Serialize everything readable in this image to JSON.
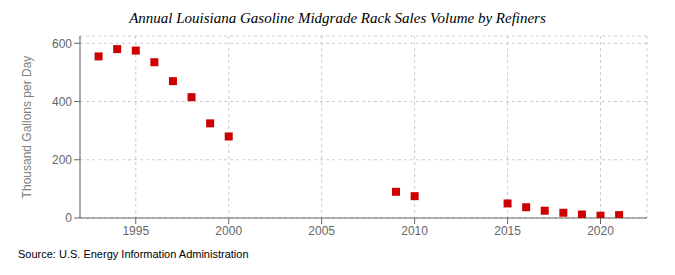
{
  "chart_data": {
    "type": "scatter",
    "title": "Annual Louisiana Gasoline Midgrade Rack Sales Volume by Refiners",
    "ylabel": "Thousand Gallons per Day",
    "source": "Source: U.S. Energy Information Administration",
    "x": [
      1993,
      1994,
      1995,
      1996,
      1997,
      1998,
      1999,
      2000,
      2009,
      2010,
      2015,
      2016,
      2017,
      2018,
      2019,
      2020,
      2021
    ],
    "values": [
      555,
      580,
      575,
      535,
      470,
      415,
      325,
      280,
      90,
      75,
      50,
      37,
      25,
      18,
      12,
      8,
      10
    ],
    "color": "#cc0000",
    "marker": "square",
    "xlim": [
      1992,
      2022.5
    ],
    "xticks": [
      1995,
      2000,
      2005,
      2010,
      2015,
      2020
    ],
    "ylim": [
      0,
      625
    ],
    "yticks": [
      0,
      200,
      400,
      600
    ],
    "grid": true
  }
}
